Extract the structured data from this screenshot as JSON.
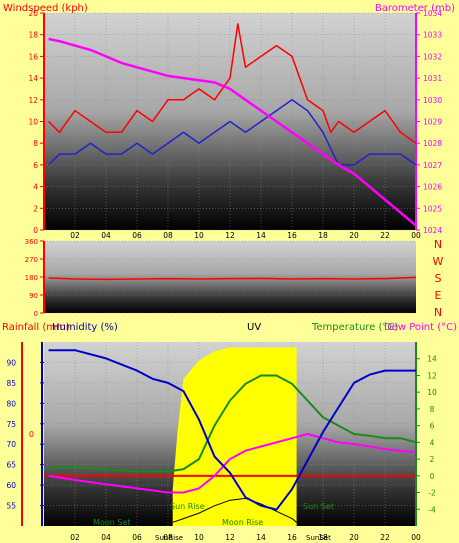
{
  "colors": {
    "page_bg": "#ffff99",
    "wind": "#ff0000",
    "wind_avg": "#2222cc",
    "baro": "#ff00ff",
    "temp": "#1a8a1a",
    "dew": "#ff00ff",
    "humidity": "#0000cc",
    "uv": "#ffff00",
    "red_axis": "#ff0000",
    "green_axis": "#1a8a1a",
    "blue_axis": "#0000cc"
  },
  "chart_data": [
    {
      "type": "line",
      "panel": "wind-baro",
      "title": "",
      "ylabel_left": "Windspeed (kph)",
      "ylabel_right": "Barometer (mb)",
      "ylim_left": [
        0,
        20
      ],
      "ylim_right": [
        1024,
        1034
      ],
      "xlim": [
        0,
        24
      ],
      "x_ticks": [
        "02",
        "04",
        "06",
        "08",
        "10",
        "12",
        "14",
        "16",
        "18",
        "20",
        "22",
        "00"
      ],
      "y_ticks_left": [
        "0",
        "2",
        "4",
        "6",
        "8",
        "10",
        "12",
        "14",
        "16",
        "18",
        "20"
      ],
      "y_ticks_right": [
        "1024",
        "1025",
        "1026",
        "1027",
        "1028",
        "1029",
        "1030",
        "1031",
        "1032",
        "1033",
        "1034"
      ],
      "grid": true,
      "series": [
        {
          "key": "gust",
          "axis": "left",
          "color": "#ff0000",
          "x": [
            0.3,
            1,
            2,
            3,
            4,
            5,
            6,
            7,
            8,
            9,
            10,
            11,
            12,
            12.5,
            13,
            14,
            15,
            16,
            17,
            18,
            18.5,
            19,
            20,
            21,
            22,
            23,
            24
          ],
          "y": [
            10,
            9,
            11,
            10,
            9,
            9,
            11,
            10,
            12,
            12,
            13,
            12,
            14,
            19,
            15,
            16,
            17,
            16,
            12,
            11,
            9,
            10,
            9,
            10,
            11,
            9,
            8
          ]
        },
        {
          "key": "avg",
          "axis": "left",
          "color": "#2222cc",
          "x": [
            0.3,
            1,
            2,
            3,
            4,
            5,
            6,
            7,
            8,
            9,
            10,
            11,
            12,
            13,
            14,
            15,
            16,
            17,
            18,
            19,
            20,
            21,
            22,
            23,
            24
          ],
          "y": [
            6,
            7,
            7,
            8,
            7,
            7,
            8,
            7,
            8,
            9,
            8,
            9,
            10,
            9,
            10,
            11,
            12,
            11,
            9,
            6,
            6,
            7,
            7,
            7,
            6
          ]
        },
        {
          "key": "baro",
          "axis": "right",
          "color": "#ff00ff",
          "x": [
            0.3,
            1,
            2,
            3,
            4,
            5,
            6,
            7,
            8,
            9,
            10,
            11,
            12,
            13,
            14,
            15,
            16,
            17,
            18,
            19,
            20,
            21,
            22,
            23,
            24
          ],
          "y": [
            1032.8,
            1032.7,
            1032.5,
            1032.3,
            1032.0,
            1031.7,
            1031.5,
            1031.3,
            1031.1,
            1031.0,
            1030.9,
            1030.8,
            1030.5,
            1030.0,
            1029.5,
            1029.0,
            1028.5,
            1028.0,
            1027.5,
            1027.0,
            1026.6,
            1026.0,
            1025.4,
            1024.8,
            1024.2
          ]
        }
      ]
    },
    {
      "type": "line",
      "panel": "direction",
      "ylim": [
        0,
        360
      ],
      "y_ticks": [
        "0",
        "90",
        "180",
        "270",
        "360"
      ],
      "compass_labels": [
        "N",
        "W",
        "S",
        "E",
        "N"
      ],
      "xlim": [
        0,
        24
      ],
      "series": [
        {
          "key": "dir",
          "color": "#ff0000",
          "x": [
            0.3,
            2,
            4,
            6,
            8,
            10,
            12,
            14,
            16,
            18,
            20,
            22,
            24
          ],
          "y": [
            175,
            170,
            168,
            170,
            172,
            170,
            172,
            173,
            170,
            172,
            170,
            172,
            178
          ]
        }
      ]
    },
    {
      "type": "line",
      "panel": "rain-hum-uv-temp",
      "ylabel_left_1": "Rainfall (mm)",
      "ylabel_left_2": "Humidity (%)",
      "ylabel_center": "UV",
      "ylabel_right_1": "Temperature (°C)",
      "ylabel_right_2": "Dew Point (°C)",
      "ylim_humidity": [
        50,
        95
      ],
      "ylim_temp": [
        -6,
        16
      ],
      "xlim": [
        0,
        24
      ],
      "y_ticks_left": [
        "55",
        "60",
        "65",
        "70",
        "75",
        "80",
        "85",
        "90"
      ],
      "y_ticks_right": [
        "-4",
        "-2",
        "0",
        "2",
        "4",
        "6",
        "8",
        "10",
        "12",
        "14"
      ],
      "rain_zero_label": "0",
      "x_ticks": [
        "02",
        "04",
        "06",
        "08",
        "10",
        "12",
        "14",
        "16",
        "18",
        "20",
        "22",
        "00"
      ],
      "annotations": {
        "sunrise": "Sun Rise",
        "sunset": "Sun Set",
        "moonset": "Moon Set",
        "moonrise": "Moon Rise",
        "sunrise_axis": "SunRise",
        "sunset_axis": "SunSet"
      },
      "grid": true,
      "series": [
        {
          "key": "humidity",
          "axis": "left",
          "color": "#0000cc",
          "x": [
            0.3,
            2,
            4,
            6,
            7,
            8,
            9,
            10,
            11,
            12,
            13,
            14,
            15,
            16,
            17,
            18,
            19,
            20,
            21,
            22,
            23,
            24
          ],
          "y": [
            93,
            93,
            91,
            88,
            86,
            85,
            83,
            76,
            67,
            63,
            57,
            55,
            54,
            59,
            66,
            73,
            79,
            85,
            87,
            88,
            88,
            88
          ]
        },
        {
          "key": "temperature",
          "axis": "right",
          "color": "#1a8a1a",
          "x": [
            0.3,
            2,
            4,
            6,
            8,
            9,
            10,
            11,
            12,
            13,
            14,
            15,
            16,
            17,
            18,
            19,
            20,
            21,
            22,
            23,
            24
          ],
          "y": [
            1,
            1,
            0.8,
            0.5,
            0.5,
            0.8,
            2,
            6,
            9,
            11,
            12,
            12,
            11,
            9,
            7,
            6,
            5,
            4.8,
            4.5,
            4.5,
            4
          ]
        },
        {
          "key": "dewpoint",
          "axis": "right",
          "color": "#ff00ff",
          "x": [
            0.3,
            2,
            4,
            6,
            8,
            9,
            10,
            11,
            12,
            13,
            14,
            15,
            16,
            17,
            18,
            19,
            20,
            21,
            22,
            23,
            24
          ],
          "y": [
            0,
            -0.5,
            -1,
            -1.5,
            -2,
            -2,
            -1.5,
            0,
            2,
            3,
            3.5,
            4,
            4.5,
            5,
            4.5,
            4,
            3.8,
            3.5,
            3.2,
            3,
            2.8
          ]
        },
        {
          "key": "uv",
          "color": "#ffff00",
          "x": [
            8.3,
            8.6,
            9,
            10,
            11,
            12,
            13,
            14,
            15,
            16,
            16.3
          ],
          "y": [
            0.2,
            0.5,
            0.8,
            0.9,
            0.95,
            0.97,
            0.97,
            0.97,
            0.97,
            0.97,
            0.97
          ]
        },
        {
          "key": "solar",
          "color": "#000000",
          "x": [
            8.3,
            9,
            10,
            11,
            12,
            13,
            14,
            15,
            16,
            16.3
          ],
          "y": [
            0.02,
            0.04,
            0.07,
            0.11,
            0.14,
            0.15,
            0.12,
            0.08,
            0.04,
            0.02
          ]
        }
      ]
    }
  ]
}
